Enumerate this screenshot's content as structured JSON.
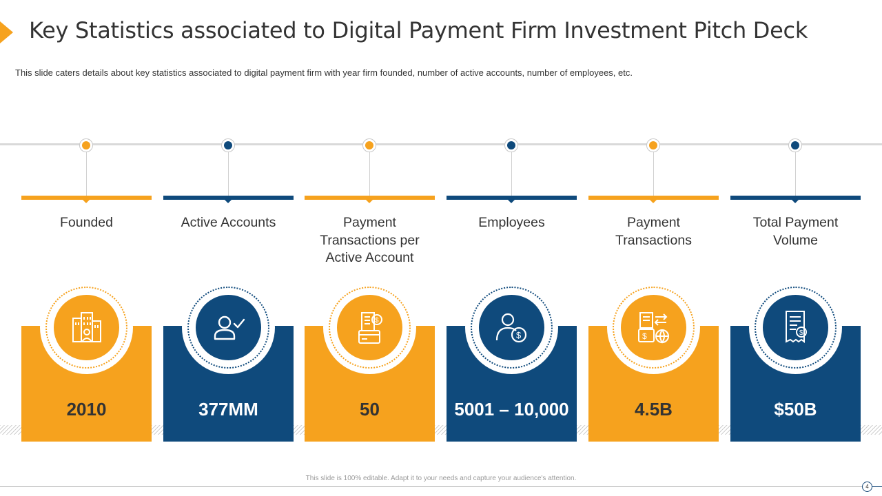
{
  "header": {
    "title": "Key Statistics associated to Digital Payment Firm Investment Pitch Deck",
    "subtitle": "This slide caters details about key statistics associated to digital payment firm with year firm founded, number of active accounts, number of employees, etc."
  },
  "colors": {
    "orange": "#f6a21e",
    "navy": "#0f4a7c"
  },
  "stats": [
    {
      "label": "Founded",
      "value": "2010",
      "theme": "orange",
      "icon": "office-building-icon"
    },
    {
      "label": "Active Accounts",
      "value": "377MM",
      "theme": "navy",
      "icon": "user-check-icon"
    },
    {
      "label": "Payment Transactions per Active Account",
      "value": "50",
      "theme": "orange",
      "icon": "receipt-card-icon"
    },
    {
      "label": "Employees",
      "value": "5001 – 10,000",
      "theme": "navy",
      "icon": "person-dollar-icon"
    },
    {
      "label": "Payment Transactions",
      "value": "4.5B",
      "theme": "orange",
      "icon": "payment-transfer-icon"
    },
    {
      "label": "Total Payment Volume",
      "value": "$50B",
      "theme": "navy",
      "icon": "invoice-dollar-icon"
    }
  ],
  "footer": {
    "note": "This slide is 100% editable. Adapt it to your needs and capture your audience's attention.",
    "page_number": "4"
  }
}
